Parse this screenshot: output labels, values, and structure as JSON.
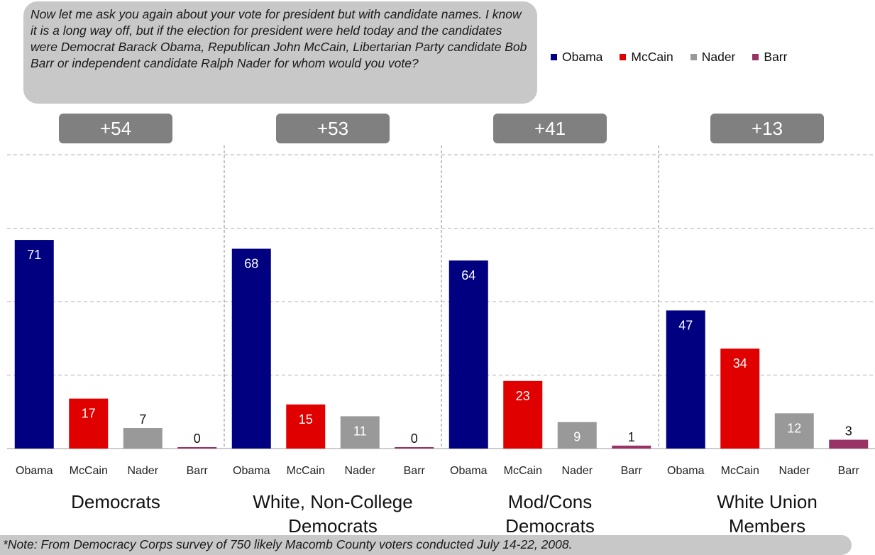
{
  "question": "Now let me ask you again about your vote for president but with candidate names. I know it is a long way off, but if the election for president were held today and the candidates were Democrat Barack Obama, Republican John McCain, Libertarian Party candidate Bob Barr or independent candidate Ralph Nader for whom would you vote?",
  "note": "*Note: From Democracy Corps survey of 750 likely Macomb County voters conducted July 14-22, 2008.",
  "colors": {
    "Obama": "#000080",
    "McCain": "#e00000",
    "Nader": "#999999",
    "Barr": "#993366",
    "diff_box": "#808080"
  },
  "chart_data": {
    "type": "bar",
    "categories": [
      "Obama",
      "McCain",
      "Nader",
      "Barr"
    ],
    "legend": [
      "Obama",
      "McCain",
      "Nader",
      "Barr"
    ],
    "legend_position": "top-right",
    "ylim": [
      0,
      100
    ],
    "grid": true,
    "groups": [
      {
        "name": "Democrats",
        "name_lines": [
          "Democrats"
        ],
        "margin": "+54",
        "values": [
          71,
          17,
          7,
          0
        ]
      },
      {
        "name": "White, Non-College Democrats",
        "name_lines": [
          "White, Non-College",
          "Democrats"
        ],
        "margin": "+53",
        "values": [
          68,
          15,
          11,
          0
        ]
      },
      {
        "name": "Mod/Cons Democrats",
        "name_lines": [
          "Mod/Cons",
          "Democrats"
        ],
        "margin": "+41",
        "values": [
          64,
          23,
          9,
          1
        ]
      },
      {
        "name": "White Union Members",
        "name_lines": [
          "White Union",
          "Members"
        ],
        "margin": "+13",
        "values": [
          47,
          34,
          12,
          3
        ]
      }
    ]
  }
}
